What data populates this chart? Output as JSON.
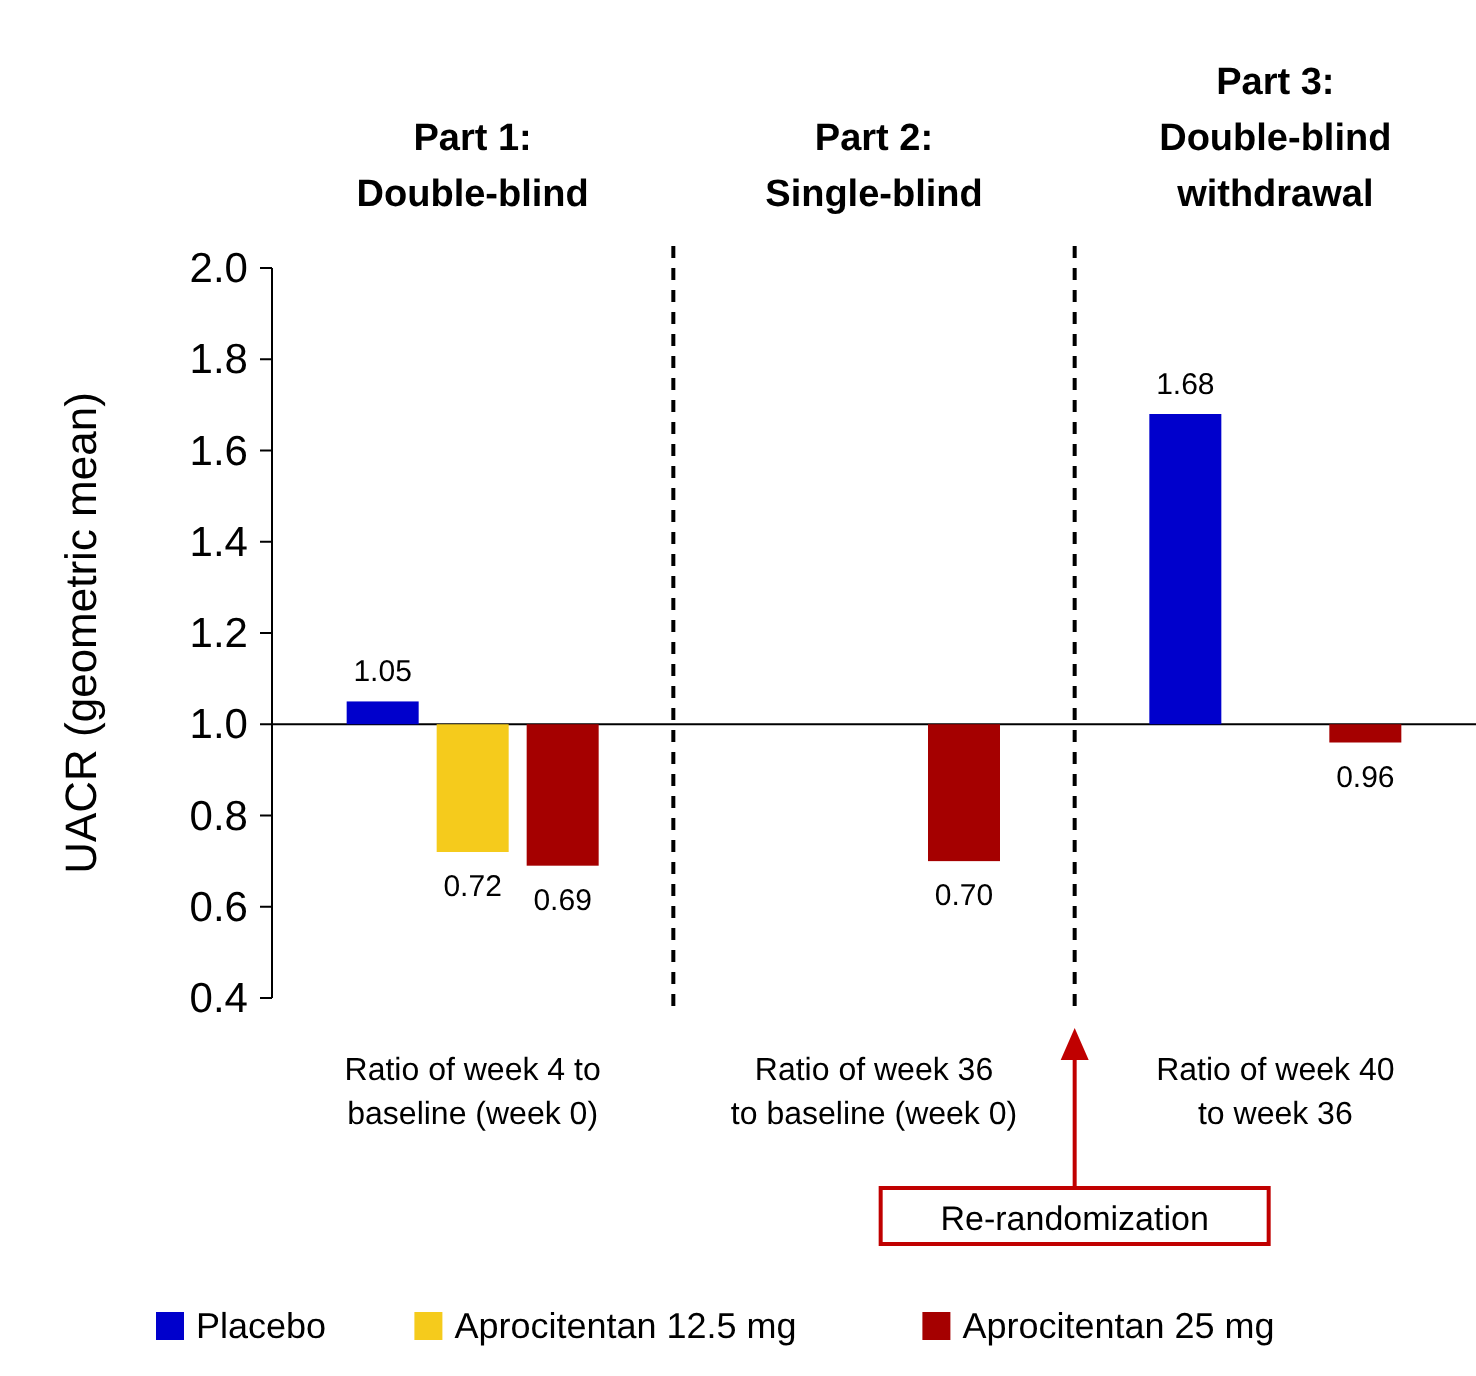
{
  "chart_data": {
    "type": "bar",
    "ylabel": "UACR (geometric mean)",
    "categories": [
      "Ratio of week 4 to baseline (week 0)",
      "Ratio of week 36 to baseline (week 0)",
      "Ratio of week 40 to week 36"
    ],
    "series": [
      {
        "name": "Placebo",
        "color": "#0000cc",
        "base": [
          1,
          null,
          1
        ],
        "values": [
          0.05,
          null,
          0.68
        ],
        "value_labels": [
          "1.05",
          null,
          "1.68"
        ]
      },
      {
        "name": "Aprocitentan 12.5 mg",
        "color": "#f5cb1c",
        "base": [
          1,
          null,
          null
        ],
        "values": [
          -0.28,
          null,
          null
        ],
        "value_labels": [
          "0.72",
          null,
          null
        ]
      },
      {
        "name": "Aprocitentan 25 mg",
        "color": "#a50000",
        "base": [
          1,
          1,
          1
        ],
        "values": [
          -0.31,
          -0.3,
          -0.04
        ],
        "value_labels": [
          "0.69",
          "0.70",
          "0.96"
        ]
      }
    ],
    "ylim": [
      0.4,
      2.0
    ],
    "yticks": [
      {
        "value": 0.4,
        "label": "0.4"
      },
      {
        "value": 0.6,
        "label": "0.6"
      },
      {
        "value": 0.8,
        "label": "0.8"
      },
      {
        "value": 1.0,
        "label": "1.0"
      },
      {
        "value": 1.2,
        "label": "1.2"
      },
      {
        "value": 1.4,
        "label": "1.4"
      },
      {
        "value": 1.6,
        "label": "1.6"
      },
      {
        "value": 1.8,
        "label": "1.8"
      },
      {
        "value": 2.0,
        "label": "2.0"
      }
    ],
    "ref_lines": [
      {
        "axis": "y",
        "value": 1.0,
        "line_style": "solid",
        "color": "#000000"
      }
    ],
    "annotations": [
      "Part 1: Double-blind",
      "Part 2: Single-blind",
      "Part 3: Double-blind withdrawal",
      "Re-randomization"
    ],
    "grid": false,
    "legend": "bottom"
  }
}
